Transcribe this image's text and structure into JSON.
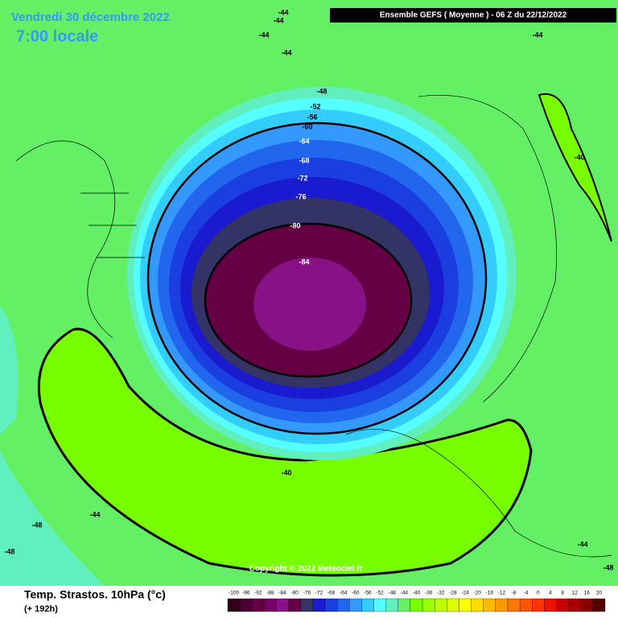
{
  "header": {
    "date": "Vendredi 30 décembre 2022",
    "time": "7:00 locale",
    "model": "Ensemble GEFS  ( Moyenne )  -  06 Z du 22/12/2022"
  },
  "contour_labels": [
    -44,
    -44,
    -44,
    -44,
    -44,
    -48,
    -52,
    -56,
    -60,
    -64,
    -68,
    -72,
    -76,
    -80,
    -84,
    -40,
    -40,
    -44,
    -48,
    -48,
    -44,
    -48
  ],
  "copyright": "Copyright © 2022 Meteociel.fr",
  "footer": {
    "title": "Temp. Strastos. 10hPa (°c)",
    "lead": "(+ 192h)"
  },
  "legend": {
    "labels": [
      -100,
      -96,
      -92,
      -88,
      -84,
      -80,
      -76,
      -72,
      -68,
      -64,
      -60,
      -56,
      -52,
      -48,
      -44,
      -40,
      -36,
      -32,
      -28,
      -24,
      -20,
      -16,
      -12,
      -8,
      -4,
      0,
      4,
      8,
      12,
      16,
      20
    ],
    "colors": [
      "#33001a",
      "#4a0033",
      "#660044",
      "#770066",
      "#881188",
      "#660044",
      "#333366",
      "#1a1ad0",
      "#1a3ee0",
      "#2266ee",
      "#3399ff",
      "#33ccff",
      "#55ffff",
      "#60f0c0",
      "#64f064",
      "#77ff00",
      "#99ff00",
      "#bbff00",
      "#ddff00",
      "#ffff00",
      "#ffdd00",
      "#ffbb00",
      "#ff9900",
      "#ff7700",
      "#ff5500",
      "#ff3300",
      "#ee1100",
      "#cc0000",
      "#aa0000",
      "#880000",
      "#550000"
    ]
  }
}
